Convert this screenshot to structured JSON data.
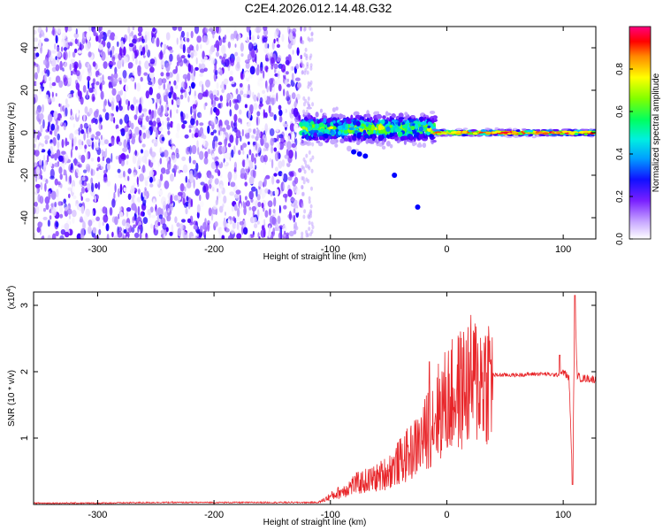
{
  "title": "C2E4.2026.012.14.48.G32",
  "spectrogram": {
    "chart_data": {
      "type": "heatmap",
      "xlabel": "Height of straight line (km)",
      "ylabel": "Frequency (Hz)",
      "xlim": [
        -355,
        128
      ],
      "ylim": [
        -50,
        50
      ],
      "x_ticks": [
        "-300",
        "-200",
        "-100",
        "0",
        "100"
      ],
      "x_tick_values": [
        -300,
        -200,
        -100,
        0,
        100
      ],
      "y_ticks": [
        "40",
        "20",
        "0",
        "-20",
        "-40"
      ],
      "y_tick_values": [
        40,
        20,
        0,
        -20,
        -40
      ],
      "colorbar": {
        "label": "Normalized spectral amplitude",
        "range": [
          0,
          1
        ],
        "ticks": [
          "0.0",
          "0.2",
          "0.4",
          "0.6",
          "0.8"
        ],
        "tick_values": [
          0.0,
          0.2,
          0.4,
          0.6,
          0.8
        ],
        "colormap": [
          "#ffffff",
          "#a070ff",
          "#6000ff",
          "#0000ff",
          "#00d8ff",
          "#00ff80",
          "#60ff00",
          "#ffff00",
          "#ff8000",
          "#ff0000",
          "#ff0080"
        ]
      },
      "regions": [
        {
          "x_range": [
            -355,
            -125
          ],
          "description_level": 0.15,
          "freq_range": [
            -50,
            50
          ]
        },
        {
          "x_range": [
            -125,
            -10
          ],
          "freq_center": 2,
          "freq_halfwidth": 6,
          "peak_level": 0.65
        },
        {
          "x_range": [
            -10,
            128
          ],
          "freq_center": 0,
          "freq_halfwidth": 1.5,
          "peak_level": 0.95
        }
      ]
    }
  },
  "snr": {
    "chart_data": {
      "type": "line",
      "xlabel": "Height of straight line (km)",
      "ylabel": "SNR (10 * v/v)",
      "scale_note": "(x10",
      "scale_exp": "4",
      "scale_close": ")",
      "xlim": [
        -355,
        128
      ],
      "ylim": [
        0,
        3.2
      ],
      "x_ticks": [
        "-300",
        "-200",
        "-100",
        "0",
        "100"
      ],
      "x_tick_values": [
        -300,
        -200,
        -100,
        0,
        100
      ],
      "y_ticks": [
        "3",
        "2",
        "1"
      ],
      "y_tick_values": [
        3,
        2,
        1
      ],
      "line_color": "#e8262a",
      "series": [
        {
          "x": [
            -355,
            -300,
            -250,
            -200,
            -150,
            -110,
            -100,
            -90,
            -80,
            -70,
            -60,
            -50,
            -40,
            -30,
            -20,
            -15,
            -10,
            0,
            10,
            20,
            30,
            40,
            60,
            80,
            95,
            100,
            105,
            108,
            110,
            112,
            115,
            120,
            128
          ],
          "y": [
            0.02,
            0.02,
            0.03,
            0.03,
            0.03,
            0.03,
            0.12,
            0.2,
            0.3,
            0.35,
            0.4,
            0.5,
            0.65,
            0.8,
            1.0,
            1.2,
            1.35,
            1.55,
            1.7,
            1.85,
            1.9,
            1.95,
            1.95,
            1.97,
            1.95,
            2.0,
            1.9,
            0.35,
            3.0,
            1.95,
            1.9,
            1.9,
            1.88
          ],
          "spikes": [
            {
              "x": -15,
              "y": 2.15
            },
            {
              "x": 97,
              "y": 2.25
            },
            {
              "x": 110,
              "y": 3.15
            },
            {
              "x": 108,
              "y": 0.3
            }
          ]
        }
      ]
    }
  }
}
